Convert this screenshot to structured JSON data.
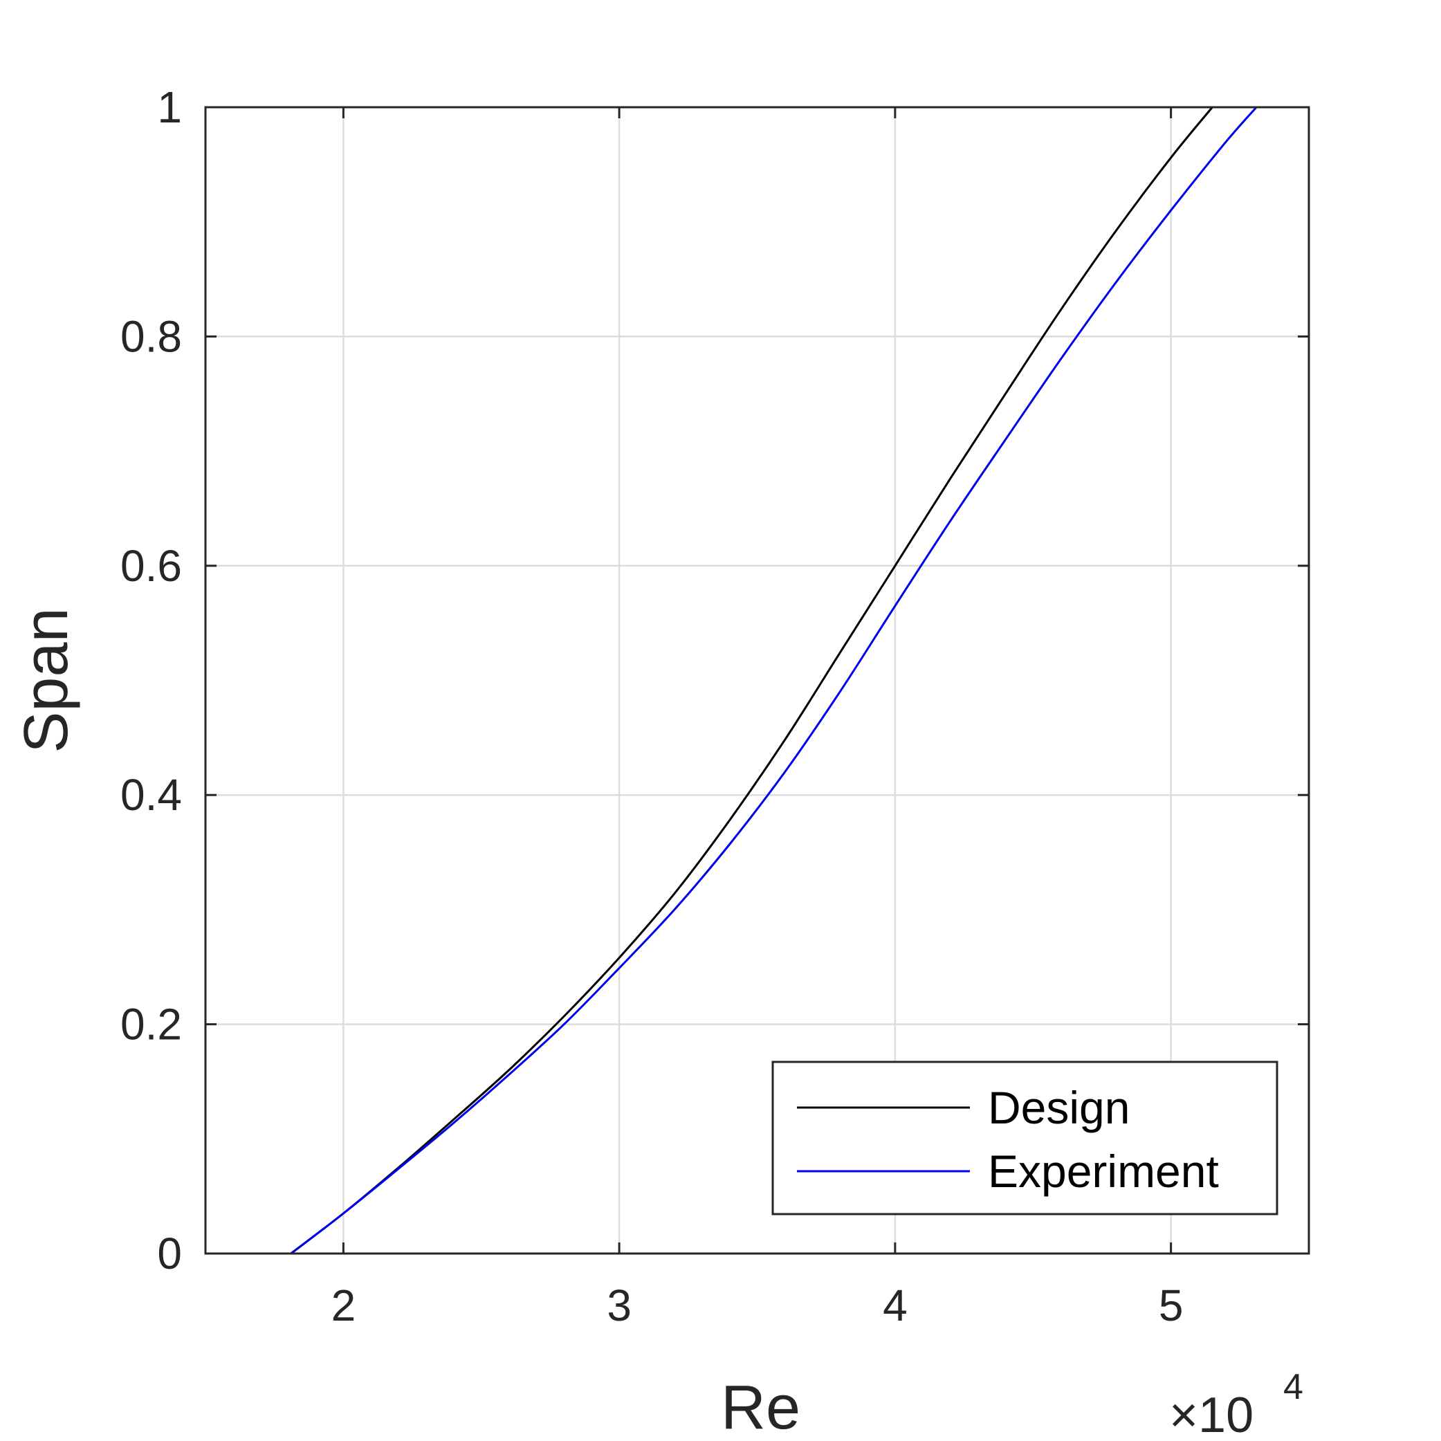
{
  "chart_data": {
    "type": "line",
    "xlabel": "Re",
    "ylabel": "Span",
    "x_multiplier": "×10",
    "x_multiplier_exponent": "4",
    "xlim": [
      15000,
      55000
    ],
    "ylim": [
      0,
      1
    ],
    "x_ticks": [
      20000,
      30000,
      40000,
      50000
    ],
    "x_tick_labels": [
      "2",
      "3",
      "4",
      "5"
    ],
    "y_ticks": [
      0,
      0.2,
      0.4,
      0.6,
      0.8,
      1
    ],
    "y_tick_labels": [
      "0",
      "0.2",
      "0.4",
      "0.6",
      "0.8",
      "1"
    ],
    "grid": true,
    "legend_position": "bottom-right",
    "series": [
      {
        "name": "Design",
        "color": "#000000",
        "x": [
          18100,
          20000,
          22000,
          24000,
          26000,
          28000,
          30000,
          32000,
          34000,
          36000,
          38000,
          40000,
          42000,
          44000,
          46000,
          48000,
          50000,
          51500
        ],
        "y": [
          0,
          0.035,
          0.075,
          0.117,
          0.16,
          0.207,
          0.258,
          0.314,
          0.378,
          0.448,
          0.524,
          0.6,
          0.676,
          0.75,
          0.823,
          0.892,
          0.956,
          1.0
        ]
      },
      {
        "name": "Experiment",
        "color": "#0000ee",
        "x": [
          18100,
          20000,
          22000,
          24000,
          26000,
          28000,
          30000,
          32000,
          34000,
          36000,
          38000,
          40000,
          42000,
          44000,
          46000,
          48000,
          50000,
          52000,
          53100
        ],
        "y": [
          0,
          0.035,
          0.074,
          0.114,
          0.156,
          0.2,
          0.249,
          0.3,
          0.357,
          0.42,
          0.49,
          0.565,
          0.639,
          0.71,
          0.78,
          0.847,
          0.91,
          0.97,
          1.0
        ]
      }
    ]
  }
}
